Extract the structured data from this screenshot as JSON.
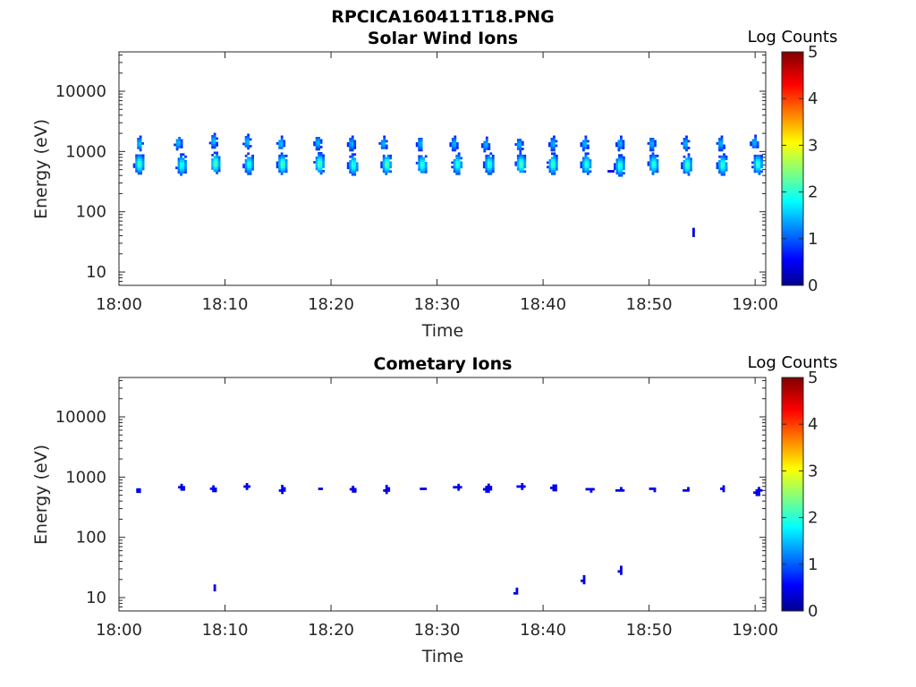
{
  "figure_title": "RPCICA160411T18.PNG",
  "chart_data": [
    {
      "type": "heatmap",
      "title": "Solar Wind Ions",
      "xlabel": "Time",
      "ylabel": "Energy (eV)",
      "xticks": [
        "18:00",
        "18:10",
        "18:20",
        "18:30",
        "18:40",
        "18:50",
        "19:00"
      ],
      "xlim": [
        "18:00",
        "19:01"
      ],
      "yticks": [
        10,
        100,
        1000,
        10000
      ],
      "ytick_labels": [
        "10",
        "100",
        "1000",
        "10000"
      ],
      "ylim": [
        6,
        45000
      ],
      "yscale": "log",
      "colorbar": {
        "label": "Log Counts",
        "ticks": [
          "0",
          "1",
          "2",
          "3",
          "4",
          "5"
        ],
        "range": [
          0,
          5
        ],
        "colormap": "jet"
      },
      "blobs": [
        {
          "time": "18:01:50",
          "energy": 1400,
          "log_counts": 1.1
        },
        {
          "time": "18:01:50",
          "energy": 650,
          "log_counts": 1.7
        },
        {
          "time": "18:05:30",
          "energy": 1450,
          "log_counts": 1.1
        },
        {
          "time": "18:05:50",
          "energy": 620,
          "log_counts": 1.5
        },
        {
          "time": "18:08:50",
          "energy": 1550,
          "log_counts": 1.1
        },
        {
          "time": "18:09:00",
          "energy": 660,
          "log_counts": 1.8
        },
        {
          "time": "18:12:00",
          "energy": 1500,
          "log_counts": 1.1
        },
        {
          "time": "18:12:10",
          "energy": 640,
          "log_counts": 1.5
        },
        {
          "time": "18:15:10",
          "energy": 1400,
          "log_counts": 1.1
        },
        {
          "time": "18:15:20",
          "energy": 640,
          "log_counts": 1.8
        },
        {
          "time": "18:18:40",
          "energy": 1450,
          "log_counts": 1.1
        },
        {
          "time": "18:18:50",
          "energy": 650,
          "log_counts": 1.8
        },
        {
          "time": "18:21:50",
          "energy": 1400,
          "log_counts": 1.0
        },
        {
          "time": "18:22:00",
          "energy": 620,
          "log_counts": 1.6
        },
        {
          "time": "18:24:50",
          "energy": 1400,
          "log_counts": 1.0
        },
        {
          "time": "18:25:10",
          "energy": 640,
          "log_counts": 1.8
        },
        {
          "time": "18:28:20",
          "energy": 1400,
          "log_counts": 1.0
        },
        {
          "time": "18:28:30",
          "energy": 630,
          "log_counts": 1.6
        },
        {
          "time": "18:31:30",
          "energy": 1400,
          "log_counts": 1.0
        },
        {
          "time": "18:31:50",
          "energy": 640,
          "log_counts": 1.6
        },
        {
          "time": "18:34:30",
          "energy": 1350,
          "log_counts": 1.0
        },
        {
          "time": "18:34:50",
          "energy": 640,
          "log_counts": 1.6
        },
        {
          "time": "18:37:40",
          "energy": 1350,
          "log_counts": 1.0
        },
        {
          "time": "18:37:50",
          "energy": 640,
          "log_counts": 1.8
        },
        {
          "time": "18:40:50",
          "energy": 1400,
          "log_counts": 1.0
        },
        {
          "time": "18:40:50",
          "energy": 640,
          "log_counts": 1.7
        },
        {
          "time": "18:43:50",
          "energy": 1400,
          "log_counts": 1.0
        },
        {
          "time": "18:44:00",
          "energy": 640,
          "log_counts": 1.6
        },
        {
          "time": "18:46:20",
          "energy": 500,
          "log_counts": 0.8
        },
        {
          "time": "18:47:10",
          "energy": 1400,
          "log_counts": 1.0
        },
        {
          "time": "18:47:10",
          "energy": 600,
          "log_counts": 1.6
        },
        {
          "time": "18:50:10",
          "energy": 1400,
          "log_counts": 1.0
        },
        {
          "time": "18:50:20",
          "energy": 640,
          "log_counts": 1.6
        },
        {
          "time": "18:53:20",
          "energy": 1400,
          "log_counts": 1.0
        },
        {
          "time": "18:53:30",
          "energy": 620,
          "log_counts": 1.7
        },
        {
          "time": "18:54:00",
          "energy": 48,
          "log_counts": 0.6
        },
        {
          "time": "18:56:40",
          "energy": 1400,
          "log_counts": 1.0
        },
        {
          "time": "18:56:50",
          "energy": 620,
          "log_counts": 1.6
        },
        {
          "time": "18:59:50",
          "energy": 1450,
          "log_counts": 1.0
        },
        {
          "time": "19:00:10",
          "energy": 640,
          "log_counts": 1.6
        }
      ]
    },
    {
      "type": "heatmap",
      "title": "Cometary Ions",
      "xlabel": "Time",
      "ylabel": "Energy (eV)",
      "xticks": [
        "18:00",
        "18:10",
        "18:20",
        "18:30",
        "18:40",
        "18:50",
        "19:00"
      ],
      "xlim": [
        "18:00",
        "19:01"
      ],
      "yticks": [
        10,
        100,
        1000,
        10000
      ],
      "ytick_labels": [
        "10",
        "100",
        "1000",
        "10000"
      ],
      "ylim": [
        6,
        45000
      ],
      "yscale": "log",
      "colorbar": {
        "label": "Log Counts",
        "ticks": [
          "0",
          "1",
          "2",
          "3",
          "4",
          "5"
        ],
        "range": [
          0,
          5
        ],
        "colormap": "jet"
      },
      "blobs": [
        {
          "time": "18:01:40",
          "energy": 620,
          "log_counts": 0.4
        },
        {
          "time": "18:05:50",
          "energy": 700,
          "log_counts": 0.3
        },
        {
          "time": "18:08:50",
          "energy": 660,
          "log_counts": 0.3
        },
        {
          "time": "18:08:50",
          "energy": 16,
          "log_counts": 0.3
        },
        {
          "time": "18:12:00",
          "energy": 720,
          "log_counts": 0.4
        },
        {
          "time": "18:15:20",
          "energy": 650,
          "log_counts": 0.4
        },
        {
          "time": "18:18:50",
          "energy": 680,
          "log_counts": 0.3
        },
        {
          "time": "18:22:00",
          "energy": 650,
          "log_counts": 0.3
        },
        {
          "time": "18:25:10",
          "energy": 650,
          "log_counts": 0.3
        },
        {
          "time": "18:28:30",
          "energy": 680,
          "log_counts": 0.4
        },
        {
          "time": "18:31:50",
          "energy": 700,
          "log_counts": 0.3
        },
        {
          "time": "18:34:40",
          "energy": 680,
          "log_counts": 0.3
        },
        {
          "time": "18:37:20",
          "energy": 13,
          "log_counts": 0.3
        },
        {
          "time": "18:37:50",
          "energy": 720,
          "log_counts": 0.4
        },
        {
          "time": "18:41:00",
          "energy": 720,
          "log_counts": 0.3
        },
        {
          "time": "18:43:40",
          "energy": 21,
          "log_counts": 0.3
        },
        {
          "time": "18:44:20",
          "energy": 650,
          "log_counts": 0.4
        },
        {
          "time": "18:47:10",
          "energy": 640,
          "log_counts": 0.3
        },
        {
          "time": "18:47:10",
          "energy": 30,
          "log_counts": 0.3
        },
        {
          "time": "18:50:20",
          "energy": 660,
          "log_counts": 0.3
        },
        {
          "time": "18:53:30",
          "energy": 640,
          "log_counts": 0.3
        },
        {
          "time": "18:56:50",
          "energy": 660,
          "log_counts": 0.3
        },
        {
          "time": "19:00:10",
          "energy": 600,
          "log_counts": 0.4
        }
      ]
    }
  ]
}
